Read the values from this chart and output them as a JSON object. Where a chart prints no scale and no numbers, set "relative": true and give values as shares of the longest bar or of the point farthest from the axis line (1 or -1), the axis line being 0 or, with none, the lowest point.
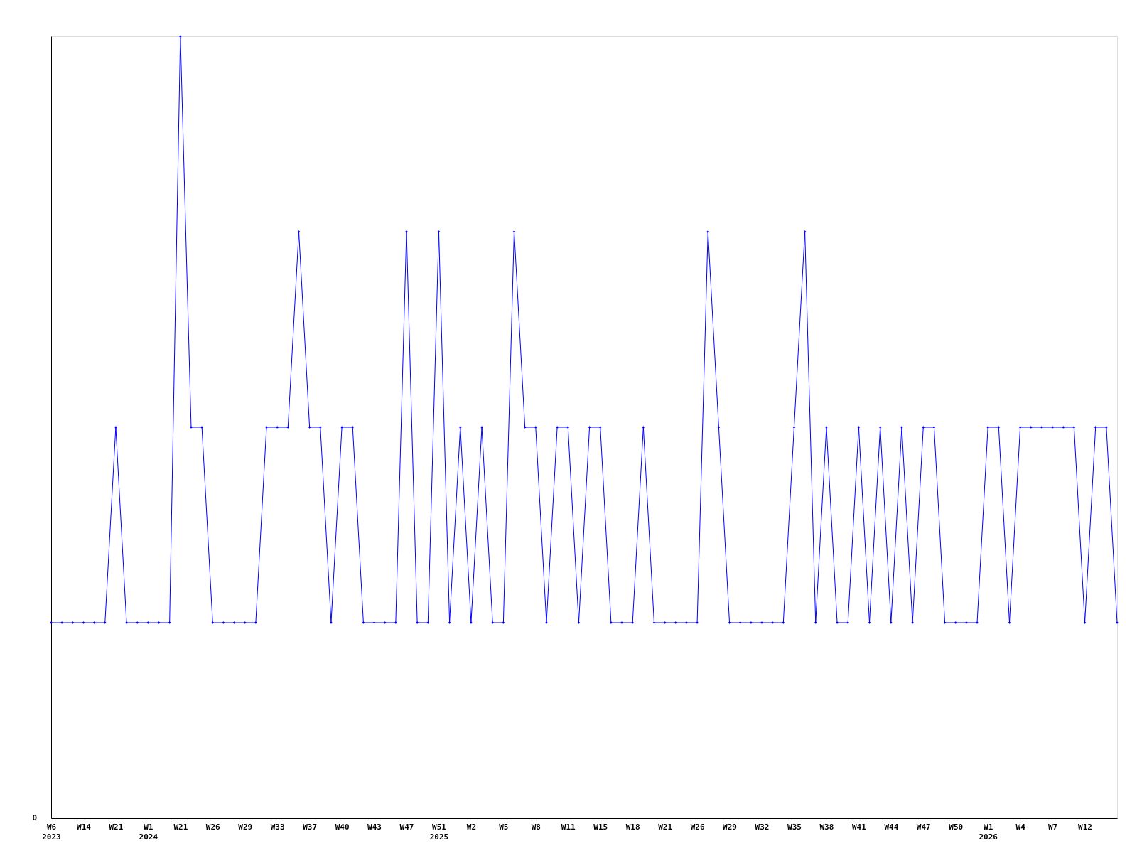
{
  "chart_data": {
    "type": "line",
    "relative": true,
    "grid": false,
    "marker": "diamond",
    "line_style": "solid",
    "annotations": [
      "0"
    ],
    "categories": [
      "W6\n2023",
      null,
      null,
      "W14",
      null,
      null,
      "W21",
      null,
      null,
      "W1\n2024",
      null,
      null,
      "W21",
      null,
      null,
      "W26",
      null,
      null,
      "W29",
      null,
      null,
      "W33",
      null,
      null,
      "W37",
      null,
      null,
      "W40",
      null,
      null,
      "W43",
      null,
      null,
      "W47",
      null,
      null,
      "W51\n2025",
      null,
      null,
      "W2",
      null,
      null,
      "W5",
      null,
      null,
      "W8",
      null,
      null,
      "W11",
      null,
      null,
      "W15",
      null,
      null,
      "W18",
      null,
      null,
      "W21",
      null,
      null,
      "W26",
      null,
      null,
      "W29",
      null,
      null,
      "W32",
      null,
      null,
      "W35",
      null,
      null,
      "W38",
      null,
      null,
      "W41",
      null,
      null,
      "W44",
      null,
      null,
      "W47",
      null,
      null,
      "W50",
      null,
      null,
      "W1\n2026",
      null,
      null,
      "W4",
      null,
      null,
      "W7",
      null,
      null,
      "W12",
      null,
      null,
      null
    ],
    "series": [
      {
        "color": "#0000ff",
        "values": [
          0.25,
          0.25,
          0.25,
          0.25,
          0.25,
          0.25,
          0.5,
          0.25,
          0.25,
          0.25,
          0.25,
          0.25,
          1,
          0.5,
          0.5,
          0.25,
          0.25,
          0.25,
          0.25,
          0.25,
          0.5,
          0.5,
          0.5,
          0.75,
          0.5,
          0.5,
          0.25,
          0.5,
          0.5,
          0.25,
          0.25,
          0.25,
          0.25,
          0.75,
          0.25,
          0.25,
          0.75,
          0.25,
          0.5,
          0.25,
          0.5,
          0.25,
          0.25,
          0.75,
          0.5,
          0.5,
          0.25,
          0.5,
          0.5,
          0.25,
          0.5,
          0.5,
          0.25,
          0.25,
          0.25,
          0.5,
          0.25,
          0.25,
          0.25,
          0.25,
          0.25,
          0.75,
          0.5,
          0.25,
          0.25,
          0.25,
          0.25,
          0.25,
          0.25,
          0.5,
          0.75,
          0.25,
          0.5,
          0.25,
          0.25,
          0.5,
          0.25,
          0.5,
          0.25,
          0.5,
          0.25,
          0.5,
          0.5,
          0.25,
          0.25,
          0.25,
          0.25,
          0.5,
          0.5,
          0.25,
          0.5,
          0.5,
          0.5,
          0.5,
          0.5,
          0.5,
          0.25,
          0.5,
          0.5,
          0.25
        ]
      }
    ]
  }
}
